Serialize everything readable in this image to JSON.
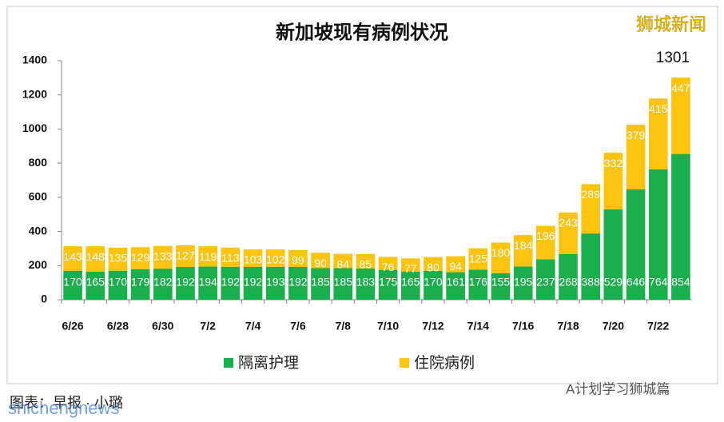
{
  "chart_data": {
    "type": "stacked_bar",
    "title": "新加坡现有病例状况",
    "categories": [
      "6/26",
      null,
      "6/28",
      null,
      "6/30",
      null,
      "7/2",
      null,
      "7/4",
      null,
      "7/6",
      null,
      "7/8",
      null,
      "7/10",
      null,
      "7/12",
      null,
      "7/14",
      null,
      "7/16",
      null,
      "7/18",
      null,
      "7/20",
      null,
      "7/22",
      null
    ],
    "series": [
      {
        "name": "隔离护理",
        "color": "#1aae4c",
        "values": [
          170,
          165,
          170,
          179,
          182,
          192,
          194,
          192,
          192,
          193,
          192,
          185,
          185,
          183,
          175,
          165,
          170,
          161,
          176,
          155,
          195,
          237,
          268,
          388,
          529,
          646,
          764,
          854
        ]
      },
      {
        "name": "住院病例",
        "color": "#fcc30f",
        "values": [
          143,
          148,
          135,
          129,
          133,
          127,
          119,
          113,
          103,
          102,
          99,
          90,
          84,
          85,
          76,
          77,
          80,
          94,
          125,
          180,
          184,
          196,
          243,
          289,
          332,
          379,
          415,
          447
        ]
      }
    ],
    "ylim": [
      0,
      1400
    ],
    "yticks": [
      0,
      200,
      400,
      600,
      800,
      1000,
      1200,
      1400
    ],
    "grid": false,
    "annotation": "1301",
    "watermark": "狮城新闻",
    "caption": "图表：早报 · 小璐",
    "footer_watermark": "shichengnews",
    "source": "A计划学习狮城篇"
  }
}
